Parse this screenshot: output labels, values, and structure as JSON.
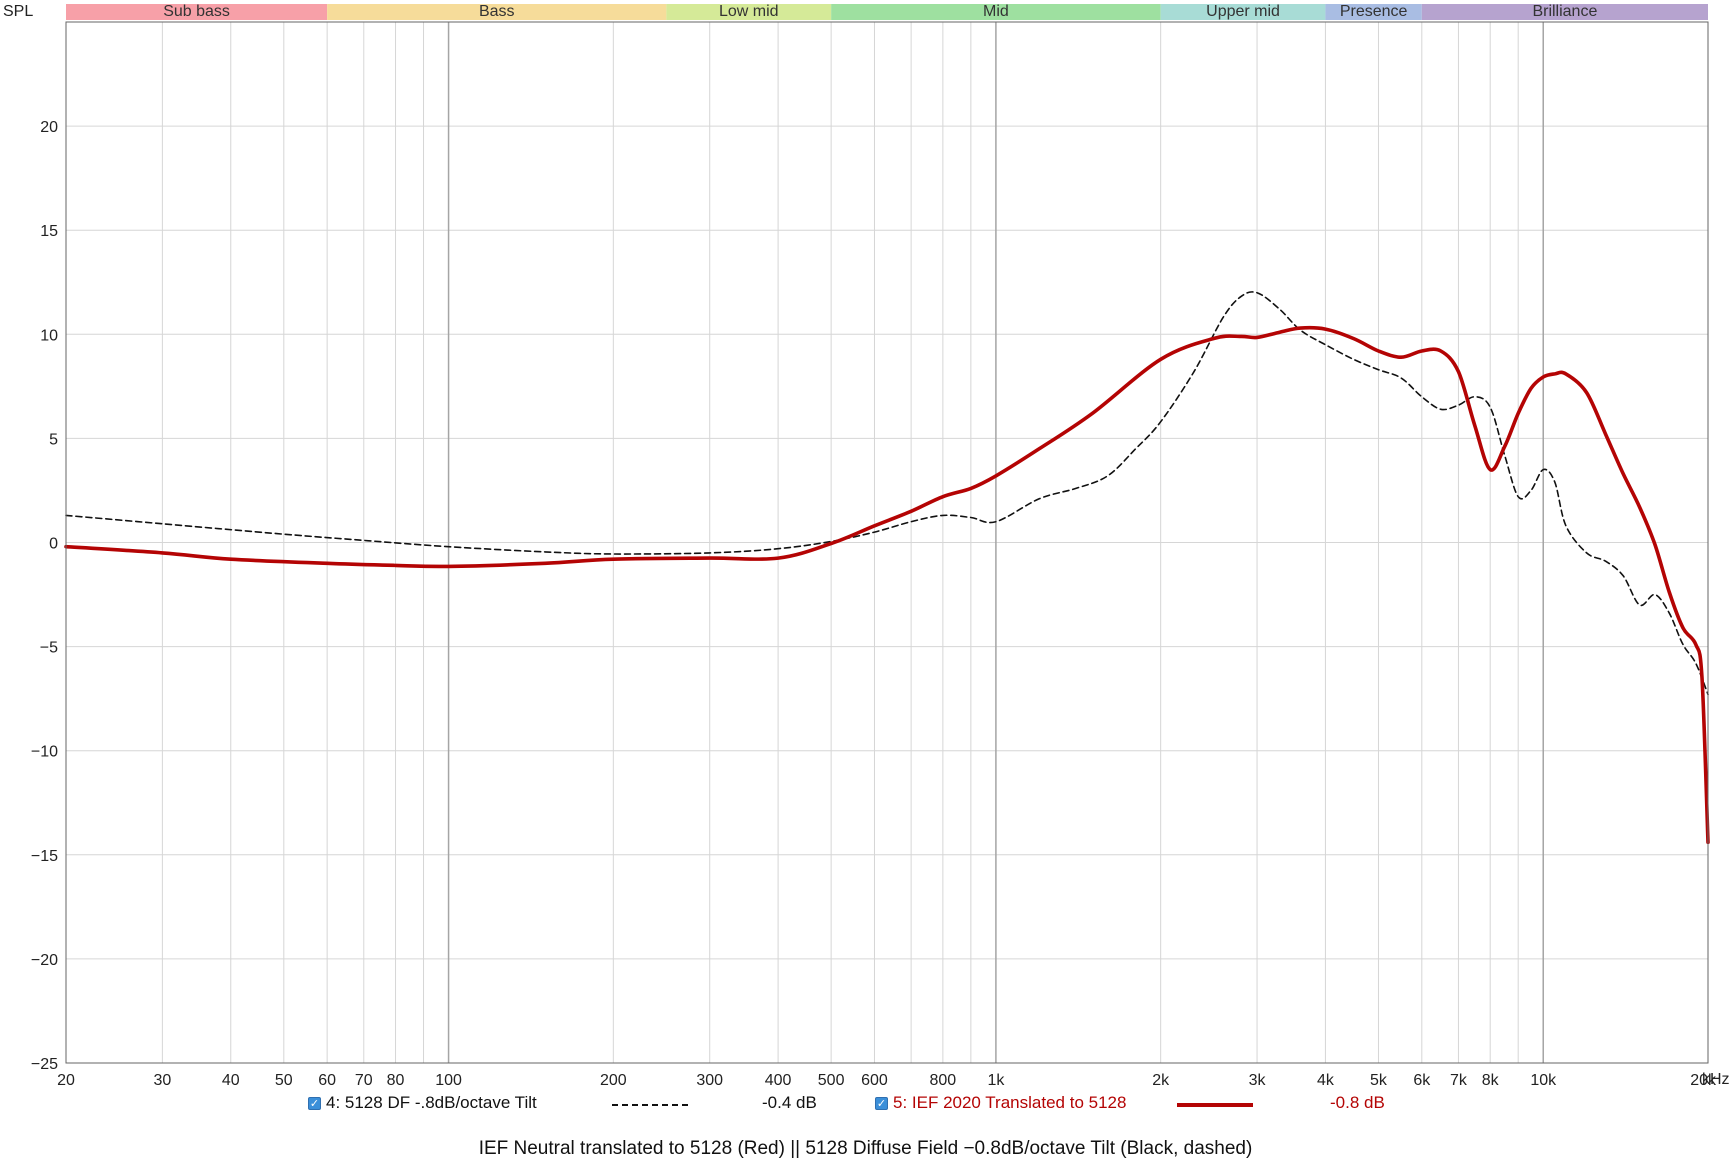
{
  "chart_data": {
    "type": "line",
    "y_axis_title": "SPL",
    "x_unit_label": "kHz",
    "x_scale": "log",
    "xlim": [
      20,
      20000
    ],
    "ylim": [
      -25,
      25
    ],
    "grid": true,
    "y_ticks": [
      -25,
      -20,
      -15,
      -10,
      -5,
      0,
      5,
      10,
      15,
      20
    ],
    "x_ticks": [
      {
        "value": 20,
        "label": "20"
      },
      {
        "value": 30,
        "label": "30"
      },
      {
        "value": 40,
        "label": "40"
      },
      {
        "value": 50,
        "label": "50"
      },
      {
        "value": 60,
        "label": "60"
      },
      {
        "value": 70,
        "label": "70"
      },
      {
        "value": 80,
        "label": "80"
      },
      {
        "value": 100,
        "label": "100"
      },
      {
        "value": 200,
        "label": "200"
      },
      {
        "value": 300,
        "label": "300"
      },
      {
        "value": 400,
        "label": "400"
      },
      {
        "value": 500,
        "label": "500"
      },
      {
        "value": 600,
        "label": "600"
      },
      {
        "value": 800,
        "label": "800"
      },
      {
        "value": 1000,
        "label": "1k"
      },
      {
        "value": 2000,
        "label": "2k"
      },
      {
        "value": 3000,
        "label": "3k"
      },
      {
        "value": 4000,
        "label": "4k"
      },
      {
        "value": 5000,
        "label": "5k"
      },
      {
        "value": 6000,
        "label": "6k"
      },
      {
        "value": 7000,
        "label": "7k"
      },
      {
        "value": 8000,
        "label": "8k"
      },
      {
        "value": 10000,
        "label": "10k"
      },
      {
        "value": 20000,
        "label": "20k"
      }
    ],
    "bands": [
      {
        "label": "Sub bass",
        "from": 20,
        "to": 60,
        "color": "#f7a0a8"
      },
      {
        "label": "Bass",
        "from": 60,
        "to": 250,
        "color": "#f6dc9a"
      },
      {
        "label": "Low mid",
        "from": 250,
        "to": 500,
        "color": "#d5ea98"
      },
      {
        "label": "Mid",
        "from": 500,
        "to": 2000,
        "color": "#9ee0a0"
      },
      {
        "label": "Upper mid",
        "from": 2000,
        "to": 4000,
        "color": "#a8dcd6"
      },
      {
        "label": "Presence",
        "from": 4000,
        "to": 6000,
        "color": "#a9bde3"
      },
      {
        "label": "Brilliance",
        "from": 6000,
        "to": 20000,
        "color": "#b6a3cf"
      }
    ],
    "series": [
      {
        "name": "4: 5128 DF -.8dB/octave Tilt",
        "offset_label": "-0.4 dB",
        "color": "#111111",
        "dashed": true,
        "x": [
          20,
          30,
          50,
          70,
          100,
          150,
          200,
          300,
          400,
          500,
          600,
          700,
          800,
          900,
          1000,
          1200,
          1400,
          1600,
          1800,
          2000,
          2300,
          2600,
          2800,
          3000,
          3300,
          3600,
          4000,
          4500,
          5000,
          5500,
          6000,
          6500,
          7000,
          7500,
          8000,
          8500,
          9000,
          9500,
          10000,
          10500,
          11000,
          12000,
          13000,
          14000,
          15000,
          16000,
          17000,
          18000,
          19000,
          20000
        ],
        "y": [
          1.3,
          0.9,
          0.4,
          0.1,
          -0.2,
          -0.45,
          -0.55,
          -0.5,
          -0.3,
          0.05,
          0.5,
          1.0,
          1.3,
          1.2,
          1.0,
          2.1,
          2.6,
          3.2,
          4.5,
          5.8,
          8.2,
          10.8,
          11.8,
          12.0,
          11.2,
          10.2,
          9.5,
          8.8,
          8.3,
          7.9,
          7.0,
          6.4,
          6.6,
          7.0,
          6.5,
          4.2,
          2.2,
          2.5,
          3.5,
          2.9,
          0.8,
          -0.5,
          -0.9,
          -1.6,
          -3.0,
          -2.5,
          -3.4,
          -4.9,
          -5.8,
          -7.3
        ]
      },
      {
        "name": "5: IEF 2020 Translated to 5128",
        "offset_label": "-0.8 dB",
        "color": "#b40404",
        "dashed": false,
        "x": [
          20,
          30,
          40,
          60,
          80,
          100,
          150,
          200,
          300,
          400,
          500,
          600,
          700,
          800,
          900,
          1000,
          1200,
          1500,
          2000,
          2500,
          2800,
          3000,
          3300,
          3600,
          4000,
          4500,
          5000,
          5500,
          6000,
          6500,
          7000,
          7500,
          8000,
          8500,
          9000,
          9500,
          10000,
          10500,
          11000,
          12000,
          13000,
          14000,
          15000,
          16000,
          17000,
          18000,
          19000,
          19500,
          20000
        ],
        "y": [
          -0.2,
          -0.5,
          -0.8,
          -1.0,
          -1.1,
          -1.15,
          -1.0,
          -0.8,
          -0.75,
          -0.75,
          -0.05,
          0.8,
          1.5,
          2.2,
          2.6,
          3.2,
          4.5,
          6.2,
          8.8,
          9.8,
          9.9,
          9.85,
          10.1,
          10.3,
          10.25,
          9.8,
          9.2,
          8.9,
          9.2,
          9.2,
          8.2,
          5.6,
          3.5,
          4.6,
          6.2,
          7.4,
          7.95,
          8.1,
          8.1,
          7.2,
          5.2,
          3.3,
          1.7,
          -0.1,
          -2.4,
          -4.1,
          -4.9,
          -6.5,
          -14.4
        ]
      }
    ],
    "footer_caption": "IEF Neutral translated to 5128 (Red) || 5128 Diffuse Field −0.8dB/octave Tilt (Black, dashed)"
  }
}
